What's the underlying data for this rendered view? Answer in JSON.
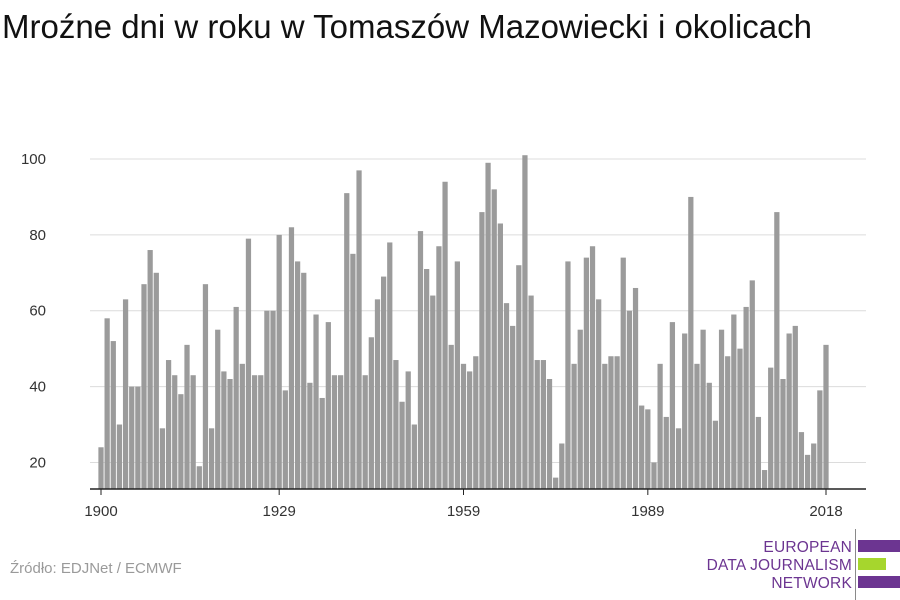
{
  "chart_data": {
    "type": "bar",
    "title": "Mroźne dni w roku w Tomaszów Mazowiecki i okolicach",
    "xlabel": "",
    "ylabel": "",
    "x": [
      1900,
      1901,
      1902,
      1903,
      1904,
      1905,
      1906,
      1907,
      1908,
      1909,
      1910,
      1911,
      1912,
      1913,
      1914,
      1915,
      1916,
      1917,
      1918,
      1919,
      1920,
      1921,
      1922,
      1923,
      1924,
      1925,
      1926,
      1927,
      1928,
      1929,
      1930,
      1931,
      1932,
      1933,
      1934,
      1935,
      1936,
      1937,
      1938,
      1939,
      1940,
      1941,
      1942,
      1943,
      1944,
      1945,
      1946,
      1947,
      1948,
      1949,
      1950,
      1951,
      1952,
      1953,
      1954,
      1955,
      1956,
      1957,
      1958,
      1959,
      1960,
      1961,
      1962,
      1963,
      1964,
      1965,
      1966,
      1967,
      1968,
      1969,
      1970,
      1971,
      1972,
      1973,
      1974,
      1975,
      1976,
      1977,
      1978,
      1979,
      1980,
      1981,
      1982,
      1983,
      1984,
      1985,
      1986,
      1987,
      1988,
      1989,
      1990,
      1991,
      1992,
      1993,
      1994,
      1995,
      1996,
      1997,
      1998,
      1999,
      2000,
      2001,
      2002,
      2003,
      2004,
      2005,
      2006,
      2007,
      2008,
      2009,
      2010,
      2011,
      2012,
      2013,
      2014,
      2015,
      2016,
      2017,
      2018
    ],
    "values": [
      24,
      58,
      52,
      30,
      63,
      40,
      40,
      67,
      76,
      70,
      29,
      47,
      43,
      38,
      51,
      43,
      19,
      67,
      29,
      55,
      44,
      42,
      61,
      46,
      79,
      43,
      43,
      60,
      60,
      80,
      39,
      82,
      73,
      70,
      41,
      59,
      37,
      57,
      43,
      43,
      91,
      75,
      97,
      43,
      53,
      63,
      69,
      78,
      47,
      36,
      44,
      30,
      81,
      71,
      64,
      77,
      94,
      51,
      73,
      46,
      44,
      48,
      86,
      99,
      92,
      83,
      62,
      56,
      72,
      101,
      64,
      47,
      47,
      42,
      16,
      25,
      73,
      46,
      55,
      74,
      77,
      63,
      46,
      48,
      48,
      74,
      60,
      66,
      35,
      34,
      20,
      46,
      32,
      57,
      29,
      54,
      90,
      46,
      55,
      41,
      31,
      55,
      48,
      59,
      50,
      61,
      68,
      32,
      18,
      45,
      86,
      42,
      54,
      56,
      28,
      22,
      25,
      39,
      51
    ],
    "xticks": [
      "1900",
      "1929",
      "1959",
      "1989",
      "2018"
    ],
    "yticks": [
      "20",
      "40",
      "60",
      "80",
      "100"
    ],
    "ylim": [
      13,
      103
    ],
    "grid": true,
    "bar_color": "#9b9b9b"
  },
  "source": "Źródło: EDJNet / ECMWF",
  "logo": {
    "lines": [
      "EUROPEAN",
      "DATA JOURNALISM",
      "NETWORK"
    ],
    "colors": {
      "purple": "#6c3591",
      "green": "#a6d62d"
    }
  }
}
